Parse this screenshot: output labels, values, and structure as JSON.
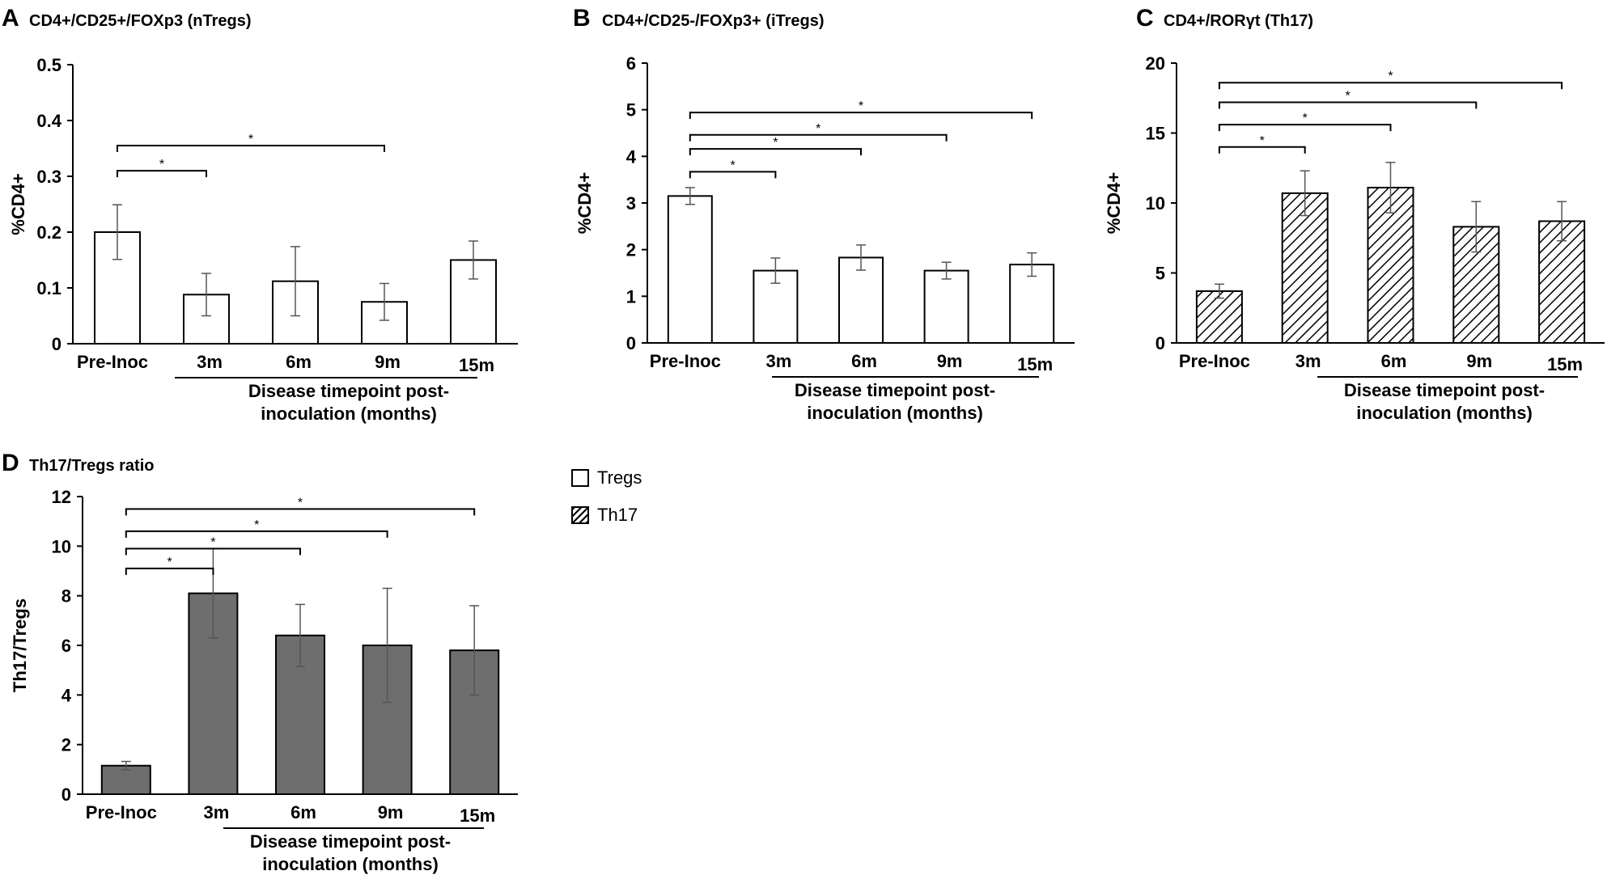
{
  "figure": {
    "legend": [
      {
        "label": "Tregs",
        "pattern": "white"
      },
      {
        "label": "Th17",
        "pattern": "hatched"
      }
    ]
  },
  "chart_data": [
    {
      "panel": "A",
      "type": "bar",
      "title": "CD4+/CD25+/FOXp3 (nTregs)",
      "ylabel": "%CD4+",
      "xlabel_lines": [
        "Disease timepoint post-",
        "inoculation (months)"
      ],
      "categories": [
        "Pre-Inoc",
        "3m",
        "6m",
        "9m",
        "15m"
      ],
      "values": [
        0.2,
        0.088,
        0.112,
        0.075,
        0.15
      ],
      "errors": [
        0.049,
        0.038,
        0.062,
        0.033,
        0.034
      ],
      "ylim": [
        0,
        0.5
      ],
      "yticks": [
        "0",
        "0.1",
        "0.2",
        "0.3",
        "0.4",
        "0.5"
      ],
      "bar_style": "white",
      "significance": [
        {
          "from": "Pre-Inoc",
          "to": "3m",
          "label": "*",
          "y": 0.31
        },
        {
          "from": "Pre-Inoc",
          "to": "9m",
          "label": "*",
          "y": 0.355
        }
      ]
    },
    {
      "panel": "B",
      "type": "bar",
      "title": "CD4+/CD25-/FOXp3+ (iTregs)",
      "ylabel": "%CD4+",
      "xlabel_lines": [
        "Disease timepoint post-",
        "inoculation (months)"
      ],
      "categories": [
        "Pre-Inoc",
        "3m",
        "6m",
        "9m",
        "15m"
      ],
      "values": [
        3.15,
        1.55,
        1.83,
        1.55,
        1.68
      ],
      "errors": [
        0.18,
        0.27,
        0.27,
        0.18,
        0.25
      ],
      "ylim": [
        0,
        6
      ],
      "yticks": [
        "0",
        "1",
        "2",
        "3",
        "4",
        "5",
        "6"
      ],
      "bar_style": "white",
      "significance": [
        {
          "from": "Pre-Inoc",
          "to": "3m",
          "label": "*",
          "y": 3.67
        },
        {
          "from": "Pre-Inoc",
          "to": "6m",
          "label": "*",
          "y": 4.16
        },
        {
          "from": "Pre-Inoc",
          "to": "9m",
          "label": "*",
          "y": 4.46
        },
        {
          "from": "Pre-Inoc",
          "to": "15m",
          "label": "*",
          "y": 4.94
        }
      ]
    },
    {
      "panel": "C",
      "type": "bar",
      "title": "CD4+/RORγt (Th17)",
      "ylabel": "%CD4+",
      "xlabel_lines": [
        "Disease timepoint post-",
        "inoculation (months)"
      ],
      "categories": [
        "Pre-Inoc",
        "3m",
        "6m",
        "9m",
        "15m"
      ],
      "values": [
        3.7,
        10.7,
        11.1,
        8.3,
        8.7
      ],
      "errors": [
        0.5,
        1.6,
        1.8,
        1.8,
        1.4
      ],
      "ylim": [
        0,
        20
      ],
      "yticks": [
        "0",
        "5",
        "10",
        "15",
        "20"
      ],
      "bar_style": "hatched",
      "significance": [
        {
          "from": "Pre-Inoc",
          "to": "3m",
          "label": "*",
          "y": 14.0
        },
        {
          "from": "Pre-Inoc",
          "to": "6m",
          "label": "*",
          "y": 15.6
        },
        {
          "from": "Pre-Inoc",
          "to": "9m",
          "label": "*",
          "y": 17.2
        },
        {
          "from": "Pre-Inoc",
          "to": "15m",
          "label": "*",
          "y": 18.6
        }
      ]
    },
    {
      "panel": "D",
      "type": "bar",
      "title": "Th17/Tregs ratio",
      "ylabel": "Th17/Tregs",
      "xlabel_lines": [
        "Disease timepoint post-",
        "inoculation (months)"
      ],
      "categories": [
        "Pre-Inoc",
        "3m",
        "6m",
        "9m",
        "15m"
      ],
      "values": [
        1.15,
        8.1,
        6.4,
        6.0,
        5.8
      ],
      "errors": [
        0.17,
        1.8,
        1.25,
        2.3,
        1.8
      ],
      "ylim": [
        0,
        12
      ],
      "yticks": [
        "0",
        "2",
        "4",
        "6",
        "8",
        "10",
        "12"
      ],
      "bar_style": "gray",
      "significance": [
        {
          "from": "Pre-Inoc",
          "to": "3m",
          "label": "*",
          "y": 9.1
        },
        {
          "from": "Pre-Inoc",
          "to": "6m",
          "label": "*",
          "y": 9.9
        },
        {
          "from": "Pre-Inoc",
          "to": "9m",
          "label": "*",
          "y": 10.6
        },
        {
          "from": "Pre-Inoc",
          "to": "15m",
          "label": "*",
          "y": 11.5
        }
      ]
    }
  ]
}
